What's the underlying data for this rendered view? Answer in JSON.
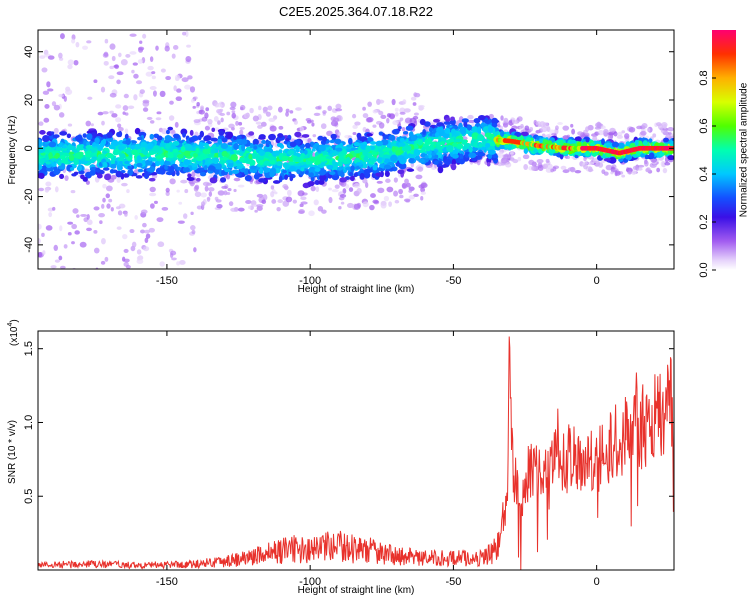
{
  "title": "C2E5.2025.364.07.18.R22",
  "chart_data": [
    {
      "type": "heatmap",
      "xlabel": "Height of straight line (km)",
      "ylabel": "Frequency (Hz)",
      "xlim": [
        -195,
        27
      ],
      "ylim": [
        -50,
        49
      ],
      "xticks": [
        -150,
        -100,
        -50,
        0
      ],
      "yticks": [
        -40,
        -20,
        0,
        20,
        40
      ],
      "grid": false,
      "ridge": [
        {
          "x": -195,
          "y": -3
        },
        {
          "x": -150,
          "y": -2
        },
        {
          "x": -120,
          "y": -4
        },
        {
          "x": -100,
          "y": -5
        },
        {
          "x": -80,
          "y": -3
        },
        {
          "x": -60,
          "y": 1
        },
        {
          "x": -40,
          "y": 4
        },
        {
          "x": -30,
          "y": 3
        },
        {
          "x": -20,
          "y": 1
        },
        {
          "x": -10,
          "y": 0
        },
        {
          "x": 0,
          "y": 0
        },
        {
          "x": 8,
          "y": -2
        },
        {
          "x": 15,
          "y": 0
        },
        {
          "x": 27,
          "y": 0
        }
      ],
      "colorbar": {
        "label": "Normalized spectral amplitude",
        "range": [
          0,
          1
        ],
        "ticks": [
          0.0,
          0.2,
          0.4,
          0.6,
          0.8
        ]
      }
    },
    {
      "type": "line",
      "xlabel": "Height of straight line (km)",
      "ylabel": "SNR (10 * v/v)",
      "yscale_label": "(x10",
      "yscale_exp": "4",
      "xlim": [
        -195,
        27
      ],
      "ylim": [
        0,
        1.62
      ],
      "xticks": [
        -150,
        -100,
        -50,
        0
      ],
      "yticks": [
        0.5,
        1.0,
        1.5
      ],
      "yticklabels": [
        "0.5",
        "1.0",
        "1.5"
      ],
      "line_color": "#e8322c",
      "series": [
        {
          "x": [
            -195,
            -180,
            -160,
            -140,
            -125,
            -115,
            -105,
            -100,
            -95,
            -90,
            -85,
            -80,
            -75,
            -70,
            -60,
            -50,
            -40,
            -34,
            -31,
            -30.5,
            -29,
            -26,
            -22,
            -18,
            -14,
            -11,
            -9,
            -6,
            -2,
            0,
            3,
            6,
            8,
            10,
            13,
            16,
            19,
            22,
            25,
            27
          ],
          "values": [
            0.04,
            0.05,
            0.04,
            0.05,
            0.09,
            0.14,
            0.18,
            0.16,
            0.19,
            0.2,
            0.18,
            0.17,
            0.14,
            0.12,
            0.1,
            0.1,
            0.1,
            0.2,
            0.6,
            1.62,
            0.7,
            0.6,
            0.85,
            0.7,
            1.0,
            0.8,
            0.9,
            0.85,
            0.9,
            0.85,
            0.95,
            1.0,
            0.95,
            1.05,
            1.1,
            1.1,
            1.15,
            1.2,
            1.25,
            1.3
          ]
        }
      ]
    }
  ]
}
